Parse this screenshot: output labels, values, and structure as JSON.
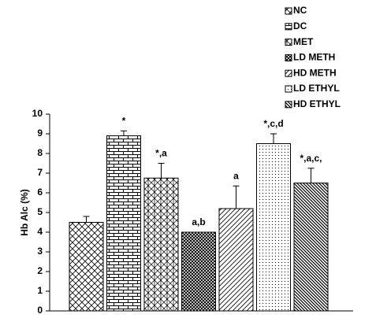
{
  "chart_data": {
    "type": "bar",
    "y_label": "Hb Alc (%)",
    "categories": [
      "NC",
      "DC",
      "MET",
      "LD METH",
      "HD METH",
      "LD ETHYL",
      "HD ETHYL"
    ],
    "values": [
      4.5,
      8.9,
      6.75,
      4.0,
      5.2,
      8.5,
      6.5
    ],
    "errors": [
      0.3,
      0.25,
      0.75,
      0,
      1.15,
      0.5,
      0.75
    ],
    "annotations": [
      null,
      "*",
      "*,a",
      "a,b",
      "a",
      "*,c,d",
      "*,a,c,"
    ],
    "ylim": [
      0,
      10
    ],
    "yticks": [
      0,
      1,
      2,
      3,
      4,
      5,
      6,
      7,
      8,
      9,
      10
    ],
    "legend": "top-right",
    "color": "#000000"
  }
}
